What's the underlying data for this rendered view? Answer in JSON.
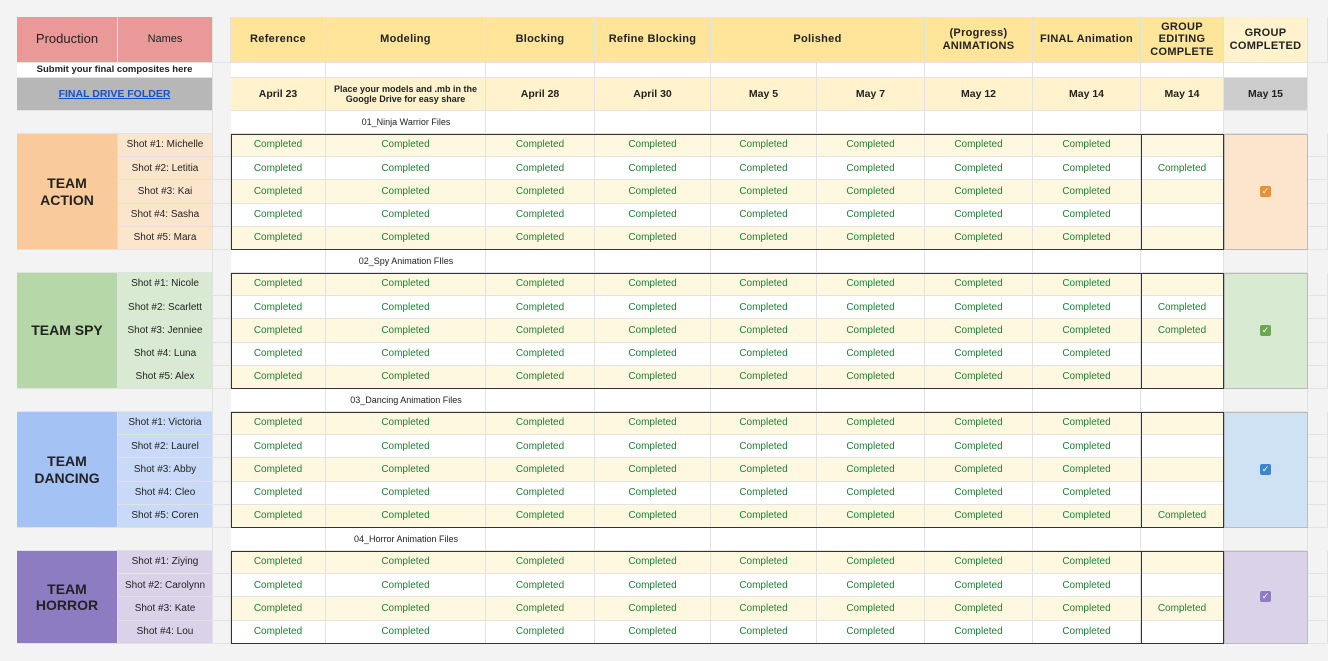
{
  "header": {
    "production": "Production",
    "names": "Names",
    "columns": [
      "Reference",
      "Modeling",
      "Blocking",
      "Refine Blocking",
      "Polished",
      "(Progress)\nANIMATIONS",
      "FINAL Animation",
      "GROUP\nEDITING\nCOMPLETE",
      "GROUP\nCOMPLETED"
    ],
    "submit_note": "Submit your final composites here",
    "drive_folder": "FINAL DRIVE FOLDER",
    "dates": [
      "April 23",
      "Place your models and .mb in the Google Drive for easy share",
      "April 28",
      "April 30",
      "May 5",
      "May 7",
      "May 12",
      "May 14",
      "May 14",
      "May 15"
    ]
  },
  "teams": [
    {
      "name": "TEAM\nACTION",
      "folder": "01_Ninja Warrior Files",
      "group_completed": true,
      "shots": [
        {
          "name": "Shot #1: Michelle",
          "statuses": [
            "Completed",
            "Completed",
            "Completed",
            "Completed",
            "Completed",
            "Completed",
            "Completed",
            "Completed"
          ]
        },
        {
          "name": "Shot #2: Letitia",
          "statuses": [
            "Completed",
            "Completed",
            "Completed",
            "Completed",
            "Completed",
            "Completed",
            "Completed",
            "Completed"
          ],
          "group_editing": "Completed"
        },
        {
          "name": "Shot #3: Kai",
          "statuses": [
            "Completed",
            "Completed",
            "Completed",
            "Completed",
            "Completed",
            "Completed",
            "Completed",
            "Completed"
          ]
        },
        {
          "name": "Shot #4: Sasha",
          "statuses": [
            "Completed",
            "Completed",
            "Completed",
            "Completed",
            "Completed",
            "Completed",
            "Completed",
            "Completed"
          ]
        },
        {
          "name": "Shot #5: Mara",
          "statuses": [
            "Completed",
            "Completed",
            "Completed",
            "Completed",
            "Completed",
            "Completed",
            "Completed",
            "Completed"
          ]
        }
      ]
    },
    {
      "name": "TEAM SPY",
      "folder": "02_Spy Animation FIles",
      "group_completed": true,
      "shots": [
        {
          "name": "Shot #1: Nicole",
          "statuses": [
            "Completed",
            "Completed",
            "Completed",
            "Completed",
            "Completed",
            "Completed",
            "Completed",
            "Completed"
          ]
        },
        {
          "name": "Shot #2: Scarlett",
          "statuses": [
            "Completed",
            "Completed",
            "Completed",
            "Completed",
            "Completed",
            "Completed",
            "Completed",
            "Completed"
          ],
          "group_editing": "Completed"
        },
        {
          "name": "Shot #3: Jenniee",
          "statuses": [
            "Completed",
            "Completed",
            "Completed",
            "Completed",
            "Completed",
            "Completed",
            "Completed",
            "Completed"
          ],
          "group_editing": "Completed"
        },
        {
          "name": "Shot #4: Luna",
          "statuses": [
            "Completed",
            "Completed",
            "Completed",
            "Completed",
            "Completed",
            "Completed",
            "Completed",
            "Completed"
          ]
        },
        {
          "name": "Shot #5: Alex",
          "statuses": [
            "Completed",
            "Completed",
            "Completed",
            "Completed",
            "Completed",
            "Completed",
            "Completed",
            "Completed"
          ]
        }
      ]
    },
    {
      "name": "TEAM\nDANCING",
      "folder": "03_Dancing Animation Files",
      "group_completed": true,
      "shots": [
        {
          "name": "Shot #1: Victoria",
          "statuses": [
            "Completed",
            "Completed",
            "Completed",
            "Completed",
            "Completed",
            "Completed",
            "Completed",
            "Completed"
          ]
        },
        {
          "name": "Shot #2: Laurel",
          "statuses": [
            "Completed",
            "Completed",
            "Completed",
            "Completed",
            "Completed",
            "Completed",
            "Completed",
            "Completed"
          ]
        },
        {
          "name": "Shot #3: Abby",
          "statuses": [
            "Completed",
            "Completed",
            "Completed",
            "Completed",
            "Completed",
            "Completed",
            "Completed",
            "Completed"
          ]
        },
        {
          "name": "Shot #4: Cleo",
          "statuses": [
            "Completed",
            "Completed",
            "Completed",
            "Completed",
            "Completed",
            "Completed",
            "Completed",
            "Completed"
          ]
        },
        {
          "name": "Shot #5: Coren",
          "statuses": [
            "Completed",
            "Completed",
            "Completed",
            "Completed",
            "Completed",
            "Completed",
            "Completed",
            "Completed"
          ],
          "group_editing": "Completed"
        }
      ]
    },
    {
      "name": "TEAM\nHORROR",
      "folder": "04_Horror Animation Files",
      "group_completed": true,
      "shots": [
        {
          "name": "Shot #1: Ziying",
          "statuses": [
            "Completed",
            "Completed",
            "Completed",
            "Completed",
            "Completed",
            "Completed",
            "Completed",
            "Completed"
          ]
        },
        {
          "name": "Shot #2: Carolynn",
          "statuses": [
            "Completed",
            "Completed",
            "Completed",
            "Completed",
            "Completed",
            "Completed",
            "Completed",
            "Completed"
          ]
        },
        {
          "name": "Shot #3: Kate",
          "statuses": [
            "Completed",
            "Completed",
            "Completed",
            "Completed",
            "Completed",
            "Completed",
            "Completed",
            "Completed"
          ],
          "group_editing": "Completed"
        },
        {
          "name": "Shot #4: Lou",
          "statuses": [
            "Completed",
            "Completed",
            "Completed",
            "Completed",
            "Completed",
            "Completed",
            "Completed",
            "Completed"
          ]
        }
      ]
    }
  ]
}
